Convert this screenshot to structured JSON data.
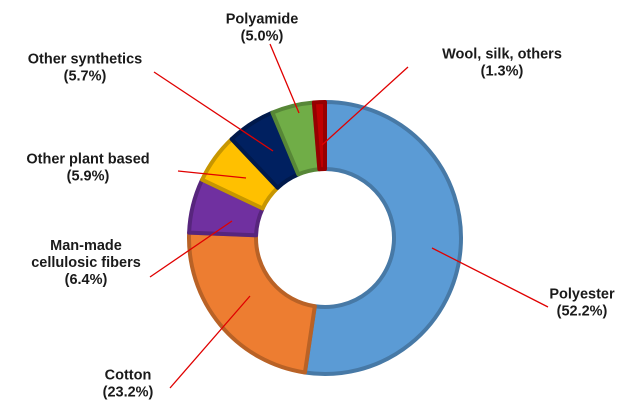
{
  "chart_data": {
    "type": "pie",
    "subtype": "donut",
    "title": "",
    "legend": "none",
    "start": "top",
    "direction": "clockwise",
    "slices": [
      {
        "key": "polyester",
        "label_lines": [
          "Polyester"
        ],
        "value": 52.2,
        "value_text": "(52.2%)",
        "color": "#5B9BD5"
      },
      {
        "key": "cotton",
        "label_lines": [
          "Cotton"
        ],
        "value": 23.2,
        "value_text": "(23.2%)",
        "color": "#ED7D31"
      },
      {
        "key": "man-made-cellulosic-fibers",
        "label_lines": [
          "Man-made",
          "cellulosic fibers"
        ],
        "value": 6.4,
        "value_text": "(6.4%)",
        "color": "#7030A0"
      },
      {
        "key": "other-plant-based",
        "label_lines": [
          "Other plant based"
        ],
        "value": 5.9,
        "value_text": "(5.9%)",
        "color": "#FFC000"
      },
      {
        "key": "other-synthetics",
        "label_lines": [
          "Other synthetics"
        ],
        "value": 5.7,
        "value_text": "(5.7%)",
        "color": "#002060"
      },
      {
        "key": "polyamide",
        "label_lines": [
          "Polyamide"
        ],
        "value": 5.0,
        "value_text": "(5.0%)",
        "color": "#70AD47"
      },
      {
        "key": "wool-silk-others",
        "label_lines": [
          "Wool, silk, others"
        ],
        "value": 1.3,
        "value_text": "(1.3%)",
        "color": "#C00000"
      }
    ],
    "leader_line_color": "#E00000"
  }
}
